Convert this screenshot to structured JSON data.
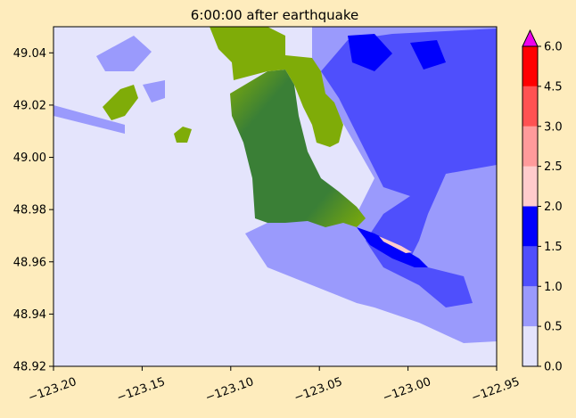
{
  "chart_data": {
    "type": "heatmap",
    "title": "6:00:00 after earthquake",
    "xlabel": "",
    "ylabel": "",
    "xlim": [
      -123.2,
      -122.95
    ],
    "ylim": [
      48.92,
      49.05
    ],
    "x_ticks": [
      -123.2,
      -123.15,
      -123.1,
      -123.05,
      -123.0,
      -122.95
    ],
    "x_tick_labels": [
      "−123.20",
      "−123.15",
      "−123.10",
      "−123.05",
      "−123.00",
      "−122.95"
    ],
    "y_ticks": [
      48.92,
      48.94,
      48.96,
      48.98,
      49.0,
      49.02,
      49.04
    ],
    "y_tick_labels": [
      "48.92",
      "48.94",
      "48.96",
      "48.98",
      "49.00",
      "49.02",
      "49.04"
    ],
    "colorbar": {
      "levels": [
        0.0,
        0.5,
        1.0,
        1.5,
        2.0,
        2.5,
        3.0,
        4.5,
        6.0
      ],
      "tick_labels": [
        "0.0",
        "0.5",
        "1.0",
        "1.5",
        "2.0",
        "2.5",
        "3.0",
        "4.5",
        "6.0"
      ],
      "colors": [
        "#e4e4fc",
        "#9a9afc",
        "#4f4ffc",
        "#0000fc",
        "#ffcccc",
        "#ff9b9b",
        "#ff5252",
        "#ff0000"
      ],
      "extend_max_color": "#ee00ee"
    },
    "land_colors": [
      "#3a7f36",
      "#7fac08"
    ],
    "background_color": "#feecbd"
  }
}
